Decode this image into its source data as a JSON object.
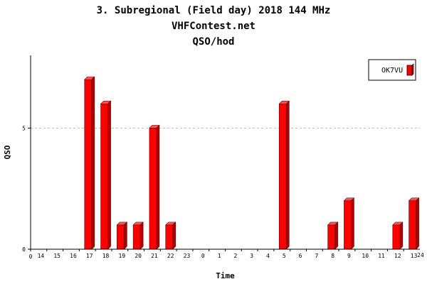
{
  "header": {
    "title": "3. Subregional (Field day) 2018 144 MHz",
    "site": "VHFContest.net",
    "subtitle": "QSO/hod"
  },
  "chart_data": {
    "type": "bar",
    "xlabel": "Time",
    "ylabel": "QSO",
    "categories": [
      "14",
      "15",
      "16",
      "17",
      "18",
      "19",
      "20",
      "21",
      "22",
      "23",
      "0",
      "1",
      "2",
      "3",
      "4",
      "5",
      "6",
      "7",
      "8",
      "9",
      "10",
      "11",
      "12",
      "13"
    ],
    "series": [
      {
        "name": "OK7VU",
        "values": [
          0,
          0,
          0,
          7,
          6,
          1,
          1,
          5,
          1,
          0,
          0,
          0,
          0,
          0,
          0,
          6,
          0,
          0,
          1,
          2,
          0,
          0,
          1,
          2
        ],
        "color": "#ff0000"
      }
    ],
    "ylim": [
      0,
      8
    ],
    "y_ticks": [
      "0",
      "5"
    ],
    "x_axis_end_labels": [
      "0",
      "24"
    ],
    "grid": "dashed horizontal at y=5",
    "legend_position": "top-right"
  }
}
